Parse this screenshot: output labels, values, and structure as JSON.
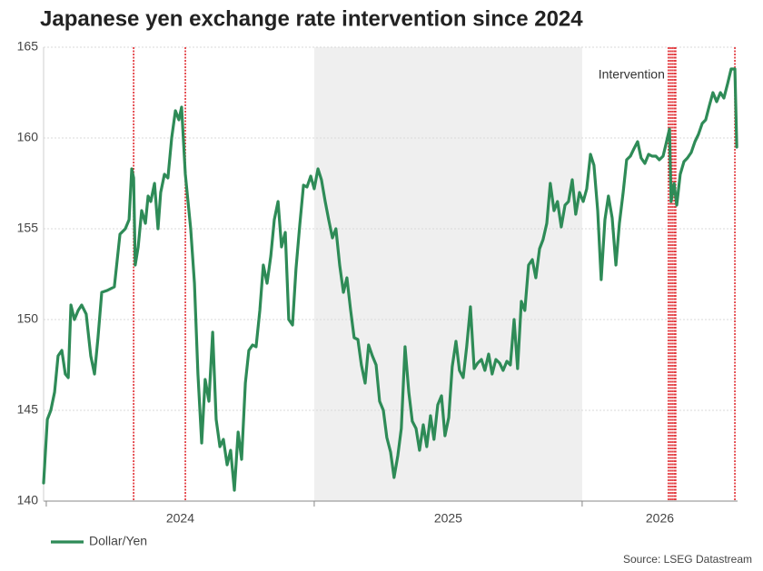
{
  "chart_data": {
    "type": "line",
    "title": "Japanese yen exchange rate intervention since 2024",
    "source": "Source: LSEG Datastream",
    "annotation": "Intervention",
    "xlim": [
      2023.99,
      2026.58
    ],
    "xticks": [
      2024,
      2025,
      2026
    ],
    "ylim": [
      140,
      165
    ],
    "yticks": [
      140,
      145,
      150,
      155,
      160,
      165
    ],
    "grid": true,
    "legend": "bottom-left",
    "shade": [
      2025,
      2026
    ],
    "shade_color": "#efefef",
    "intervention_color": "#e0282e",
    "interventions": [
      2024.326,
      2024.519,
      2026.322,
      2026.329,
      2026.336,
      2026.343,
      2026.349,
      2026.57
    ],
    "x": [
      2023.99,
      2024.004,
      2024.017,
      2024.031,
      2024.044,
      2024.058,
      2024.071,
      2024.082,
      2024.092,
      2024.105,
      2024.119,
      2024.132,
      2024.149,
      2024.166,
      2024.18,
      2024.193,
      2024.207,
      2024.227,
      2024.254,
      2024.275,
      2024.295,
      2024.309,
      2024.319,
      2024.326,
      2024.332,
      2024.343,
      2024.356,
      2024.37,
      2024.38,
      2024.39,
      2024.404,
      2024.417,
      2024.427,
      2024.441,
      2024.454,
      2024.468,
      2024.482,
      2024.495,
      2024.505,
      2024.519,
      2024.529,
      2024.539,
      2024.553,
      2024.566,
      2024.58,
      2024.593,
      2024.607,
      2024.621,
      2024.634,
      2024.648,
      2024.661,
      2024.675,
      2024.688,
      2024.702,
      2024.716,
      2024.729,
      2024.743,
      2024.756,
      2024.77,
      2024.783,
      2024.797,
      2024.81,
      2024.824,
      2024.838,
      2024.851,
      2024.865,
      2024.878,
      2024.892,
      2024.905,
      2024.919,
      2024.932,
      2024.946,
      2024.96,
      2024.973,
      2024.987,
      2025.0,
      2025.014,
      2025.027,
      2025.041,
      2025.054,
      2025.068,
      2025.081,
      2025.095,
      2025.109,
      2025.122,
      2025.136,
      2025.149,
      2025.163,
      2025.176,
      2025.19,
      2025.203,
      2025.217,
      2025.231,
      2025.244,
      2025.258,
      2025.271,
      2025.285,
      2025.298,
      2025.312,
      2025.325,
      2025.339,
      2025.353,
      2025.366,
      2025.38,
      2025.393,
      2025.407,
      2025.42,
      2025.434,
      2025.447,
      2025.461,
      2025.475,
      2025.488,
      2025.502,
      2025.515,
      2025.529,
      2025.542,
      2025.556,
      2025.569,
      2025.583,
      2025.597,
      2025.61,
      2025.624,
      2025.637,
      2025.651,
      2025.664,
      2025.678,
      2025.692,
      2025.705,
      2025.719,
      2025.732,
      2025.746,
      2025.759,
      2025.773,
      2025.786,
      2025.8,
      2025.814,
      2025.827,
      2025.841,
      2025.854,
      2025.868,
      2025.881,
      2025.895,
      2025.908,
      2025.922,
      2025.936,
      2025.949,
      2025.963,
      2025.976,
      2025.99,
      2026.004,
      2026.017,
      2026.031,
      2026.044,
      2026.058,
      2026.071,
      2026.085,
      2026.098,
      2026.112,
      2026.126,
      2026.139,
      2026.153,
      2026.166,
      2026.18,
      2026.193,
      2026.207,
      2026.22,
      2026.234,
      2026.248,
      2026.261,
      2026.275,
      2026.288,
      2026.302,
      2026.315,
      2026.326,
      2026.332,
      2026.343,
      2026.353,
      2026.366,
      2026.38,
      2026.393,
      2026.407,
      2026.421,
      2026.434,
      2026.448,
      2026.461,
      2026.475,
      2026.488,
      2026.502,
      2026.516,
      2026.529,
      2026.543,
      2026.556,
      2026.57,
      2026.577
    ],
    "series": [
      {
        "name": "Dollar/Yen",
        "color": "#2e8b57",
        "values": [
          141,
          144.5,
          145,
          146,
          148,
          148.3,
          147,
          146.8,
          150.8,
          150,
          150.5,
          150.8,
          150.3,
          148,
          147,
          149,
          151.5,
          151.6,
          151.8,
          154.7,
          155,
          155.5,
          158.3,
          157.8,
          153,
          154,
          156,
          155.3,
          156.8,
          156.5,
          157.5,
          155,
          157,
          158,
          157.8,
          160,
          161.5,
          161,
          161.7,
          158,
          156.5,
          155,
          152,
          147,
          143.2,
          146.7,
          145.5,
          149.3,
          144.5,
          143,
          143.4,
          142,
          142.8,
          140.6,
          143.8,
          142.3,
          146.5,
          148.3,
          148.6,
          148.5,
          150.5,
          153,
          152,
          153.5,
          155.5,
          156.5,
          154,
          154.8,
          150,
          149.7,
          152.8,
          155.2,
          157.4,
          157.3,
          157.9,
          157.2,
          158.3,
          157.7,
          156.5,
          155.5,
          154.5,
          155,
          153,
          151.5,
          152.3,
          150.5,
          149,
          148.9,
          147.5,
          146.5,
          148.6,
          148,
          147.5,
          145.5,
          145,
          143.5,
          142.7,
          141.3,
          142.5,
          144,
          148.5,
          146,
          144.4,
          144,
          142.8,
          144.2,
          143,
          144.7,
          143.4,
          145.3,
          145.8,
          143.6,
          144.6,
          147.4,
          148.8,
          147.2,
          146.8,
          148.5,
          150.7,
          147.3,
          147.6,
          147.8,
          147.2,
          148.1,
          147,
          147.8,
          147.6,
          147.2,
          147.7,
          147.5,
          150,
          147.3,
          151,
          150.5,
          153,
          153.3,
          152.3,
          153.9,
          154.4,
          155.3,
          157.5,
          156,
          156.5,
          155.1,
          156.3,
          156.5,
          157.7,
          155.8,
          157,
          156.5,
          157.2,
          159.1,
          158.5,
          156,
          152.2,
          155.5,
          156.8,
          155.6,
          153,
          155.3,
          157,
          158.8,
          159,
          159.4,
          159.8,
          158.9,
          158.6,
          159.1,
          159,
          159,
          158.8,
          159,
          159.8,
          160.5,
          156.5,
          157.5,
          156.3,
          158,
          158.7,
          158.9,
          159.2,
          159.8,
          160.2,
          160.8,
          161,
          161.8,
          162.5,
          162,
          162.5,
          162.2,
          163,
          163.8,
          163.8,
          159.5
        ]
      }
    ]
  }
}
